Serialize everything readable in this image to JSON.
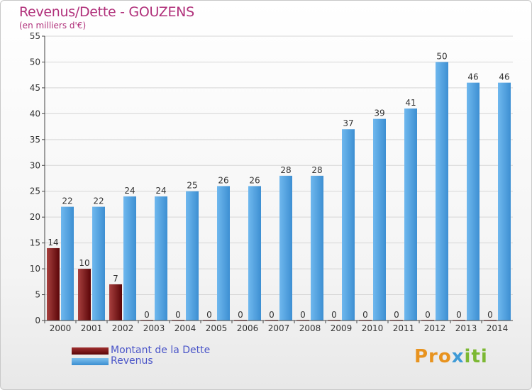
{
  "chart_data": {
    "type": "bar",
    "title": "Revenus/Dette - GOUZENS",
    "subtitle": "(en milliers d'€)",
    "categories": [
      "2000",
      "2001",
      "2002",
      "2003",
      "2004",
      "2005",
      "2006",
      "2007",
      "2008",
      "2009",
      "2010",
      "2011",
      "2012",
      "2013",
      "2014"
    ],
    "series": [
      {
        "name": "Montant de la Dette",
        "values": [
          14,
          10,
          7,
          0,
          0,
          0,
          0,
          0,
          0,
          0,
          0,
          0,
          0,
          0,
          0
        ],
        "color": "#7a1014"
      },
      {
        "name": "Revenus",
        "values": [
          22,
          22,
          24,
          24,
          25,
          26,
          26,
          28,
          28,
          37,
          39,
          41,
          50,
          46,
          46
        ],
        "color": "#4ea5e4"
      }
    ],
    "ylim": [
      0,
      55
    ],
    "yticks": [
      0,
      5,
      10,
      15,
      20,
      25,
      30,
      35,
      40,
      45,
      50,
      55
    ],
    "grid": true,
    "legend": "bottom-left"
  },
  "brand": {
    "part1": "Pro",
    "part2": "x",
    "part3": "iti"
  }
}
